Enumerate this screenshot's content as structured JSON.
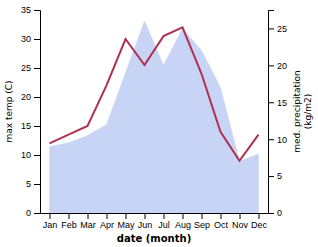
{
  "chart_data": {
    "type": "line",
    "categories": [
      "Jan",
      "Feb",
      "Mar",
      "Apr",
      "May",
      "Jun",
      "Jul",
      "Aug",
      "Sep",
      "Oct",
      "Nov",
      "Dec"
    ],
    "series": [
      {
        "type": "area",
        "color": "#c8d4f5",
        "axis": "y2",
        "values": [
          9.0,
          9.5,
          10.5,
          12.0,
          19.0,
          26.0,
          20.0,
          25.0,
          22.0,
          17.0,
          7.0,
          8.0
        ]
      },
      {
        "type": "line",
        "color": "#b03050",
        "values": [
          12.0,
          13.5,
          15.0,
          22.0,
          30.0,
          25.5,
          30.5,
          32.0,
          24.0,
          14.0,
          9.0,
          13.5
        ]
      }
    ],
    "xlabel": "date (month)",
    "ylabel": "max temp (C)",
    "y2label": "med. precipitation\n(kg/m2)",
    "ylim": [
      0,
      35
    ],
    "yticks": [
      0,
      5,
      10,
      15,
      20,
      25,
      30,
      35
    ],
    "y2lim": [
      0,
      27.5
    ],
    "y2ticks": [
      0,
      5,
      10,
      15,
      20,
      25
    ]
  }
}
